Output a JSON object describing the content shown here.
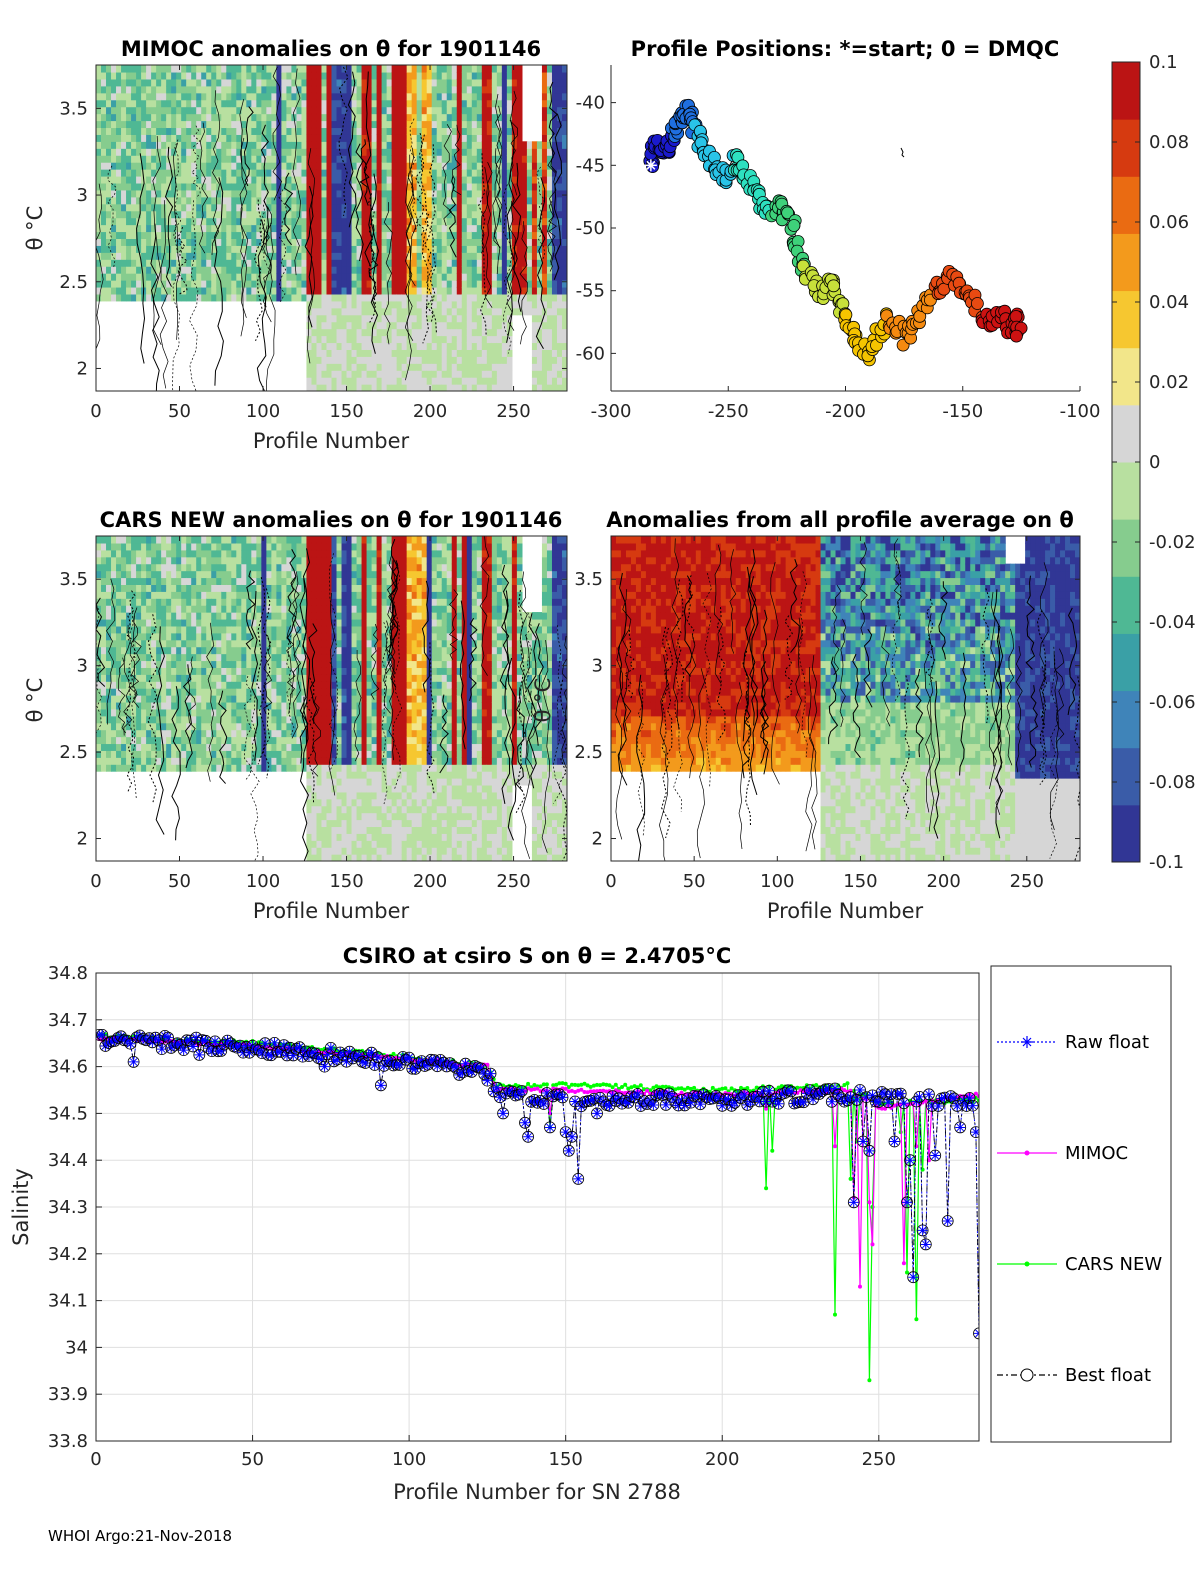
{
  "footer": "WHOI Argo:21-Nov-2018",
  "colors": {
    "raw": "#0000ff",
    "mimoc": "#ff00ff",
    "cars": "#00ff00",
    "best": "#000000"
  },
  "colorbar": {
    "ticks": [
      "0.1",
      "0.08",
      "0.06",
      "0.04",
      "0.02",
      "0",
      "-0.02",
      "-0.04",
      "-0.06",
      "-0.08",
      "-0.1"
    ],
    "range": [
      -0.1,
      0.1
    ],
    "colors": [
      "#313695",
      "#3a5ca8",
      "#3f84b9",
      "#3aa0a6",
      "#4fb894",
      "#86cc8e",
      "#b8e0a0",
      "#d6d6d6",
      "#f2e68a",
      "#f6c730",
      "#f39a1c",
      "#ea6b12",
      "#d63a10",
      "#bb1414"
    ]
  },
  "chart_data": [
    {
      "id": "mimoc",
      "type": "heatmap",
      "title": "MIMOC anomalies on θ  for 1901146",
      "xlabel": "Profile Number",
      "ylabel": "θ °C",
      "xlim": [
        0,
        282
      ],
      "ylim": [
        1.87,
        3.75
      ],
      "xticks": [
        0,
        50,
        100,
        150,
        200,
        250
      ],
      "yticks": [
        2,
        2.5,
        3,
        3.5
      ]
    },
    {
      "id": "positions",
      "type": "scatter",
      "title": "Profile Positions: *=start; 0 = DMQC",
      "xlim": [
        -300,
        -100
      ],
      "ylim": [
        -63,
        -37
      ],
      "xticks": [
        -300,
        -250,
        -200,
        -150,
        -100
      ],
      "yticks": [
        -40,
        -45,
        -50,
        -55,
        -60
      ],
      "start": [
        -283,
        -45
      ],
      "path": [
        [
          -283,
          -45
        ],
        [
          -282,
          -44
        ],
        [
          -280,
          -43
        ],
        [
          -278,
          -43.5
        ],
        [
          -276,
          -44
        ],
        [
          -274,
          -42.5
        ],
        [
          -272,
          -41.5
        ],
        [
          -270,
          -41
        ],
        [
          -268,
          -40.5
        ],
        [
          -266,
          -41
        ],
        [
          -264,
          -42
        ],
        [
          -262,
          -43
        ],
        [
          -258,
          -44
        ],
        [
          -255,
          -45.5
        ],
        [
          -252,
          -46
        ],
        [
          -248,
          -44.5
        ],
        [
          -245,
          -45
        ],
        [
          -242,
          -46
        ],
        [
          -238,
          -47
        ],
        [
          -235,
          -48
        ],
        [
          -232,
          -48.5
        ],
        [
          -228,
          -48
        ],
        [
          -225,
          -49
        ],
        [
          -222,
          -50
        ],
        [
          -220,
          -52
        ],
        [
          -218,
          -53.5
        ],
        [
          -214,
          -54.5
        ],
        [
          -210,
          -55
        ],
        [
          -206,
          -54
        ],
        [
          -204,
          -55.5
        ],
        [
          -200,
          -57
        ],
        [
          -197,
          -58
        ],
        [
          -194,
          -59
        ],
        [
          -190,
          -60
        ],
        [
          -186,
          -58.5
        ],
        [
          -182,
          -57
        ],
        [
          -178,
          -58
        ],
        [
          -174,
          -59
        ],
        [
          -170,
          -57.5
        ],
        [
          -166,
          -56
        ],
        [
          -162,
          -55
        ],
        [
          -158,
          -54.5
        ],
        [
          -154,
          -54
        ],
        [
          -150,
          -55
        ],
        [
          -146,
          -55.5
        ],
        [
          -142,
          -57
        ],
        [
          -138,
          -57.5
        ],
        [
          -134,
          -57
        ],
        [
          -130,
          -58
        ],
        [
          -127,
          -57.5
        ],
        [
          -126,
          -58
        ]
      ],
      "xlabel": "",
      "ylabel": ""
    },
    {
      "id": "cars",
      "type": "heatmap",
      "title": "CARS NEW anomalies on θ for 1901146",
      "xlabel": "Profile Number",
      "ylabel": "θ °C",
      "xlim": [
        0,
        282
      ],
      "ylim": [
        1.87,
        3.75
      ],
      "xticks": [
        0,
        50,
        100,
        150,
        200,
        250
      ],
      "yticks": [
        2,
        2.5,
        3,
        3.5
      ]
    },
    {
      "id": "allavg",
      "type": "heatmap",
      "title": "Anomalies from all profile average on θ",
      "xlabel": "Profile Number",
      "ylabel": "θ °C",
      "xlim": [
        0,
        282
      ],
      "ylim": [
        1.87,
        3.75
      ],
      "xticks": [
        0,
        50,
        100,
        150,
        200,
        250
      ],
      "yticks": [
        2,
        2.5,
        3,
        3.5
      ]
    },
    {
      "id": "salinity",
      "type": "line",
      "title": "CSIRO at csiro S on θ = 2.4705°C",
      "xlabel": "Profile Number for SN 2788",
      "ylabel": "Salinity",
      "xlim": [
        0,
        282
      ],
      "ylim": [
        33.8,
        34.8
      ],
      "xticks": [
        0,
        50,
        100,
        150,
        200,
        250
      ],
      "yticks": [
        33.8,
        33.9,
        34,
        34.1,
        34.2,
        34.3,
        34.4,
        34.5,
        34.6,
        34.7,
        34.8
      ],
      "grid": true,
      "legend": [
        "Raw float",
        "MIMOC",
        "CARS NEW",
        "Best float"
      ],
      "legend_position": "right",
      "anchors": {
        "raw_trend": [
          [
            0,
            34.66
          ],
          [
            50,
            34.64
          ],
          [
            100,
            34.61
          ],
          [
            125,
            34.59
          ],
          [
            128,
            34.54
          ],
          [
            150,
            34.53
          ],
          [
            200,
            34.53
          ],
          [
            240,
            34.54
          ],
          [
            282,
            34.52
          ]
        ],
        "mimoc_trend": [
          [
            0,
            34.66
          ],
          [
            50,
            34.645
          ],
          [
            100,
            34.615
          ],
          [
            125,
            34.6
          ],
          [
            128,
            34.55
          ],
          [
            150,
            34.55
          ],
          [
            200,
            34.54
          ],
          [
            240,
            34.55
          ],
          [
            250,
            34.51
          ],
          [
            282,
            34.54
          ]
        ],
        "cars_trend": [
          [
            0,
            34.665
          ],
          [
            50,
            34.65
          ],
          [
            100,
            34.62
          ],
          [
            125,
            34.6
          ],
          [
            128,
            34.56
          ],
          [
            150,
            34.56
          ],
          [
            200,
            34.55
          ],
          [
            240,
            34.56
          ],
          [
            250,
            34.52
          ],
          [
            282,
            34.53
          ]
        ]
      },
      "raw_dips": [
        [
          12,
          34.61
        ],
        [
          33,
          34.625
        ],
        [
          55,
          34.625
        ],
        [
          73,
          34.6
        ],
        [
          91,
          34.56
        ],
        [
          125,
          34.57
        ],
        [
          130,
          34.5
        ],
        [
          137,
          34.48
        ],
        [
          138,
          34.45
        ],
        [
          145,
          34.47
        ],
        [
          150,
          34.46
        ],
        [
          151,
          34.42
        ],
        [
          152,
          34.45
        ],
        [
          154,
          34.36
        ],
        [
          160,
          34.5
        ],
        [
          242,
          34.31
        ],
        [
          245,
          34.44
        ],
        [
          247,
          34.42
        ],
        [
          255,
          34.44
        ],
        [
          259,
          34.31
        ],
        [
          260,
          34.4
        ],
        [
          261,
          34.15
        ],
        [
          264,
          34.25
        ],
        [
          265,
          34.22
        ],
        [
          268,
          34.41
        ],
        [
          272,
          34.27
        ],
        [
          276,
          34.47
        ],
        [
          281,
          34.46
        ],
        [
          282,
          34.03
        ]
      ],
      "mimoc_dips": [
        [
          145,
          34.5
        ],
        [
          214,
          34.51
        ],
        [
          236,
          34.43
        ],
        [
          242,
          34.32
        ],
        [
          244,
          34.13
        ],
        [
          247,
          34.31
        ],
        [
          248,
          34.22
        ],
        [
          258,
          34.18
        ],
        [
          262,
          34.43
        ],
        [
          266,
          34.4
        ]
      ],
      "cars_dips": [
        [
          145,
          34.47
        ],
        [
          214,
          34.34
        ],
        [
          216,
          34.42
        ],
        [
          236,
          34.07
        ],
        [
          241,
          34.36
        ],
        [
          243,
          34.44
        ],
        [
          247,
          33.93
        ],
        [
          248,
          34.3
        ],
        [
          257,
          34.46
        ],
        [
          259,
          34.16
        ],
        [
          262,
          34.06
        ],
        [
          264,
          34.38
        ]
      ]
    }
  ]
}
